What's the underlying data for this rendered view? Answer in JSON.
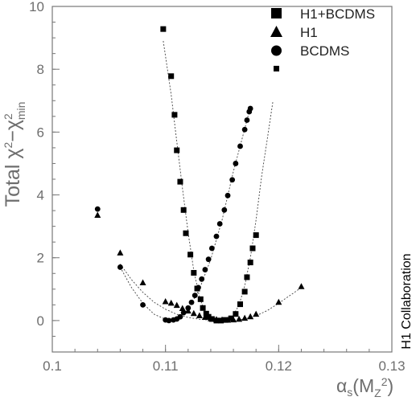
{
  "chart_data": {
    "type": "scatter",
    "xlabel": {
      "main": "α",
      "sub1": "s",
      "paren_open": "(M",
      "sub2": "Z",
      "sup": "2",
      "paren_close": ")"
    },
    "ylabel": {
      "prefix": "Total ",
      "chi1": "χ",
      "sup1": "2",
      "minus": "−",
      "chi2": "χ",
      "sup2": "2",
      "sub": "min"
    },
    "side_label": "H1 Collaboration",
    "xlim": [
      0.1,
      0.13
    ],
    "ylim": [
      -1,
      10
    ],
    "xticks": [
      0.1,
      0.11,
      0.12,
      0.13
    ],
    "xtick_labels": [
      "0.1",
      "0.11",
      "0.12",
      "0.13"
    ],
    "yticks": [
      0,
      2,
      4,
      6,
      8,
      10
    ],
    "ytick_labels": [
      "0",
      "2",
      "4",
      "6",
      "8",
      "10"
    ],
    "grid": false,
    "legend_position": "top-right",
    "series": [
      {
        "name": "H1+BCDMS",
        "marker": "square",
        "points": [
          [
            0.1098,
            9.28
          ],
          [
            0.1105,
            7.78
          ],
          [
            0.1108,
            6.55
          ],
          [
            0.111,
            5.42
          ],
          [
            0.1113,
            4.42
          ],
          [
            0.1116,
            3.52
          ],
          [
            0.1118,
            2.78
          ],
          [
            0.1122,
            2.1
          ],
          [
            0.1125,
            1.52
          ],
          [
            0.1128,
            1.02
          ],
          [
            0.1131,
            0.68
          ],
          [
            0.1133,
            0.4
          ],
          [
            0.1136,
            0.22
          ],
          [
            0.1138,
            0.12
          ],
          [
            0.1141,
            0.05
          ],
          [
            0.1145,
            0.0
          ],
          [
            0.1149,
            0.0
          ],
          [
            0.1153,
            0.02
          ],
          [
            0.1158,
            0.07
          ],
          [
            0.1162,
            0.21
          ],
          [
            0.1166,
            0.52
          ],
          [
            0.117,
            0.92
          ],
          [
            0.1172,
            1.38
          ],
          [
            0.1175,
            1.85
          ],
          [
            0.1177,
            2.3
          ],
          [
            0.118,
            2.72
          ],
          [
            0.1198,
            8.02
          ]
        ]
      },
      {
        "name": "H1",
        "marker": "triangle",
        "points": [
          [
            0.104,
            3.35
          ],
          [
            0.106,
            2.15
          ],
          [
            0.108,
            1.2
          ],
          [
            0.11,
            0.6
          ],
          [
            0.1105,
            0.55
          ],
          [
            0.111,
            0.48
          ],
          [
            0.1115,
            0.38
          ],
          [
            0.112,
            0.3
          ],
          [
            0.1125,
            0.22
          ],
          [
            0.113,
            0.15
          ],
          [
            0.1135,
            0.1
          ],
          [
            0.114,
            0.06
          ],
          [
            0.1145,
            0.03
          ],
          [
            0.115,
            0.02
          ],
          [
            0.1155,
            0.01
          ],
          [
            0.116,
            0.02
          ],
          [
            0.1165,
            0.04
          ],
          [
            0.117,
            0.07
          ],
          [
            0.1175,
            0.12
          ],
          [
            0.118,
            0.2
          ],
          [
            0.12,
            0.58
          ],
          [
            0.122,
            1.08
          ]
        ]
      },
      {
        "name": "BCDMS",
        "marker": "circle",
        "points": [
          [
            0.104,
            3.55
          ],
          [
            0.106,
            1.7
          ],
          [
            0.108,
            0.5
          ],
          [
            0.11,
            0.02
          ],
          [
            0.1103,
            0.0
          ],
          [
            0.1107,
            0.02
          ],
          [
            0.111,
            0.05
          ],
          [
            0.1113,
            0.12
          ],
          [
            0.1116,
            0.25
          ],
          [
            0.112,
            0.4
          ],
          [
            0.1123,
            0.58
          ],
          [
            0.1126,
            0.8
          ],
          [
            0.1129,
            1.05
          ],
          [
            0.1132,
            1.32
          ],
          [
            0.1135,
            1.62
          ],
          [
            0.1138,
            1.95
          ],
          [
            0.1141,
            2.3
          ],
          [
            0.1145,
            2.68
          ],
          [
            0.1148,
            3.08
          ],
          [
            0.1152,
            3.52
          ],
          [
            0.1155,
            3.98
          ],
          [
            0.1159,
            4.48
          ],
          [
            0.1162,
            5.0
          ],
          [
            0.1166,
            5.55
          ],
          [
            0.117,
            6.08
          ],
          [
            0.1172,
            6.38
          ],
          [
            0.1174,
            6.65
          ],
          [
            0.1175,
            6.75
          ]
        ]
      }
    ],
    "fit_curves": [
      {
        "series": "H1+BCDMS",
        "points": [
          [
            0.1098,
            8.9
          ],
          [
            0.1105,
            7.2
          ],
          [
            0.111,
            5.7
          ],
          [
            0.1115,
            4.2
          ],
          [
            0.112,
            2.8
          ],
          [
            0.1125,
            1.6
          ],
          [
            0.113,
            0.75
          ],
          [
            0.1135,
            0.25
          ],
          [
            0.114,
            0.04
          ],
          [
            0.1145,
            0.0
          ],
          [
            0.115,
            0.0
          ],
          [
            0.1155,
            0.04
          ],
          [
            0.116,
            0.18
          ],
          [
            0.1165,
            0.5
          ],
          [
            0.117,
            1.1
          ],
          [
            0.1175,
            2.0
          ],
          [
            0.118,
            3.2
          ],
          [
            0.1185,
            4.6
          ],
          [
            0.119,
            5.8
          ],
          [
            0.1195,
            7.0
          ]
        ]
      },
      {
        "series": "H1",
        "points": [
          [
            0.106,
            1.8
          ],
          [
            0.107,
            1.3
          ],
          [
            0.108,
            0.9
          ],
          [
            0.109,
            0.58
          ],
          [
            0.11,
            0.36
          ],
          [
            0.111,
            0.2
          ],
          [
            0.112,
            0.1
          ],
          [
            0.113,
            0.04
          ],
          [
            0.114,
            0.01
          ],
          [
            0.115,
            0.0
          ],
          [
            0.116,
            0.01
          ],
          [
            0.117,
            0.05
          ],
          [
            0.118,
            0.15
          ],
          [
            0.119,
            0.32
          ],
          [
            0.12,
            0.55
          ],
          [
            0.121,
            0.8
          ],
          [
            0.122,
            1.05
          ]
        ]
      },
      {
        "series": "BCDMS",
        "points": [
          [
            0.106,
            1.7
          ],
          [
            0.107,
            1.05
          ],
          [
            0.108,
            0.55
          ],
          [
            0.109,
            0.2
          ],
          [
            0.11,
            0.04
          ],
          [
            0.1105,
            0.01
          ],
          [
            0.111,
            0.04
          ],
          [
            0.112,
            0.36
          ],
          [
            0.113,
            1.0
          ],
          [
            0.114,
            1.95
          ],
          [
            0.115,
            3.2
          ],
          [
            0.116,
            4.75
          ],
          [
            0.117,
            6.1
          ],
          [
            0.1175,
            6.8
          ]
        ]
      }
    ]
  }
}
